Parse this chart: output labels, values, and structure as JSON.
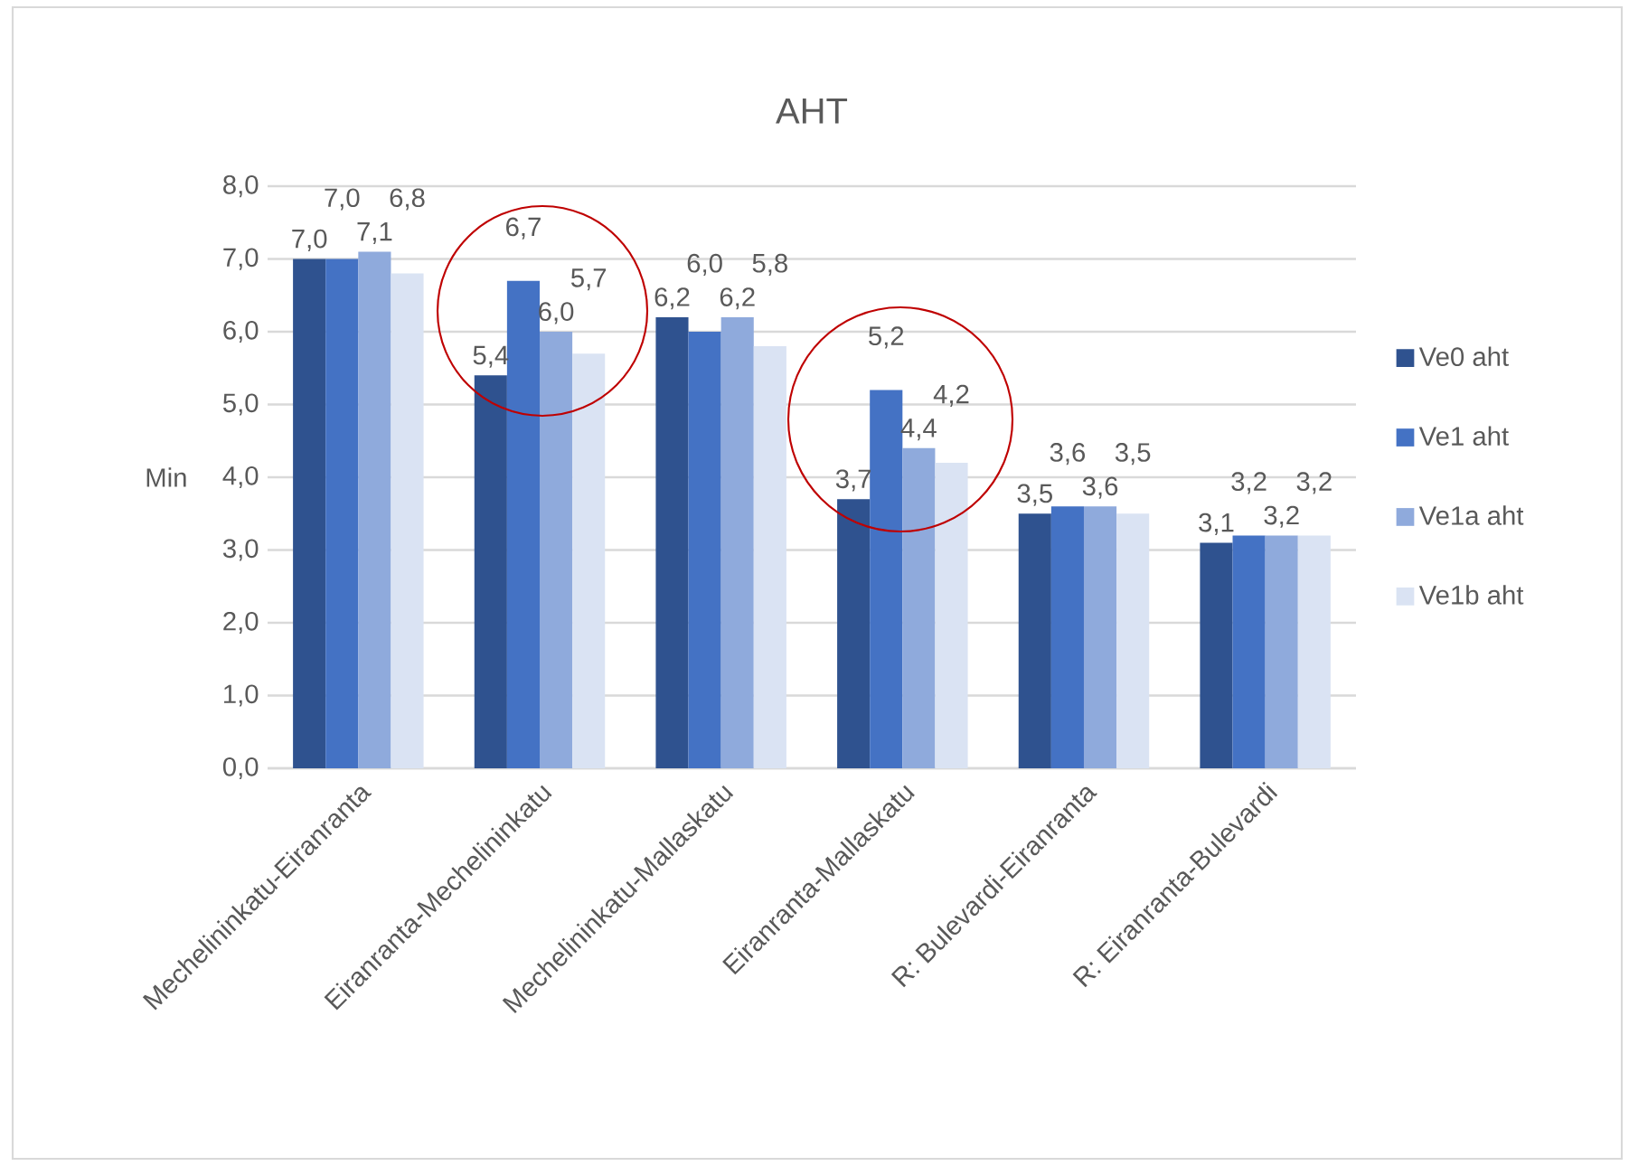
{
  "chart_data": {
    "type": "bar",
    "title": "AHT",
    "ylabel": "Min",
    "categories": [
      "Mechelininkatu-Eiranranta",
      "Eiranranta-Mechelininkatu",
      "Mechelininkatu-Mallaskatu",
      "Eiranranta-Mallaskatu",
      "R: Bulevardi-Eiranranta",
      "R: Eiranranta-Bulevardi"
    ],
    "series": [
      {
        "name": "Ve0 aht",
        "color": "#2f528f",
        "values": [
          7.0,
          5.4,
          6.2,
          3.7,
          3.5,
          3.1
        ],
        "value_labels": [
          "7,0",
          "5,4",
          "6,2",
          "3,7",
          "3,5",
          "3,1"
        ]
      },
      {
        "name": "Ve1 aht",
        "color": "#4472c4",
        "values": [
          7.0,
          6.7,
          6.0,
          5.2,
          3.6,
          3.2
        ],
        "value_labels": [
          "7,0",
          "6,7",
          "6,0",
          "5,2",
          "3,6",
          "3,2"
        ]
      },
      {
        "name": "Ve1a aht",
        "color": "#8faadc",
        "values": [
          7.1,
          6.0,
          6.2,
          4.4,
          3.6,
          3.2
        ],
        "value_labels": [
          "7,1",
          "6,0",
          "6,2",
          "4,4",
          "3,6",
          "3,2"
        ]
      },
      {
        "name": "Ve1b aht",
        "color": "#dae3f3",
        "values": [
          6.8,
          5.7,
          5.8,
          4.2,
          3.5,
          3.2
        ],
        "value_labels": [
          "6,8",
          "5,7",
          "5,8",
          "4,2",
          "3,5",
          "3,2"
        ]
      }
    ],
    "ylim": [
      0,
      8
    ],
    "yticks": [
      {
        "value": 0,
        "label": "0,0"
      },
      {
        "value": 1,
        "label": "1,0"
      },
      {
        "value": 2,
        "label": "2,0"
      },
      {
        "value": 3,
        "label": "3,0"
      },
      {
        "value": 4,
        "label": "4,0"
      },
      {
        "value": 5,
        "label": "5,0"
      },
      {
        "value": 6,
        "label": "6,0"
      },
      {
        "value": 7,
        "label": "7,0"
      },
      {
        "value": 8,
        "label": "8,0"
      }
    ],
    "grid": "y",
    "legend": "right"
  }
}
